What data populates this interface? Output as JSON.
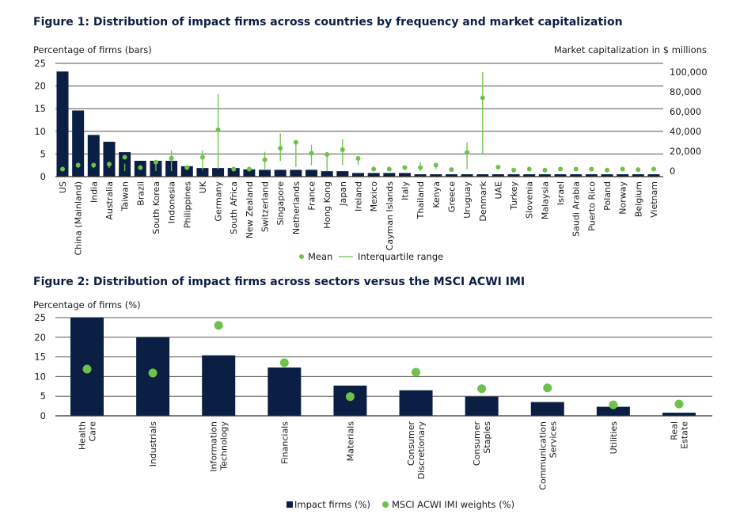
{
  "chart_data": [
    {
      "type": "bar",
      "title": "Figure 1: Distribution of impact firms across countries by frequency and market capitalization",
      "ylabel": "Percentage of firms (bars)",
      "y2label": "Market capitalization in $ millions",
      "ylim": [
        0,
        25
      ],
      "yticks": [
        0,
        5,
        10,
        15,
        20,
        25
      ],
      "y2lim": [
        0,
        100000
      ],
      "y2ticks": [
        "0",
        "20,000",
        "40,000",
        "60,000",
        "80,000",
        "100,000"
      ],
      "grid": true,
      "legend": {
        "placement": "bottom",
        "mean": "Mean",
        "iqr": "Interquartile range"
      },
      "colors": {
        "bar": "#0b1f44",
        "mean": "#6cc24a"
      },
      "categories": [
        "US",
        "China (Mainland)",
        "India",
        "Australia",
        "Taiwan",
        "Brazil",
        "South Korea",
        "Indonesia",
        "Philippines",
        "UK",
        "Germany",
        "South Africa",
        "New Zealand",
        "Switzerland",
        "Singapore",
        "Netherlands",
        "France",
        "Hong Kong",
        "Japan",
        "Ireland",
        "Mexico",
        "Cayman Islands",
        "Italy",
        "Thailand",
        "Kenya",
        "Greece",
        "Uruguay",
        "Denmark",
        "UAE",
        "Turkey",
        "Slovenia",
        "Malaysia",
        "Israel",
        "Saudi Arabia",
        "Puerto Rico",
        "Poland",
        "Norway",
        "Belgium",
        "Vietnam"
      ],
      "bars": [
        23.2,
        14.6,
        9.2,
        7.7,
        5.4,
        3.5,
        3.5,
        3.5,
        2.3,
        1.9,
        1.9,
        1.9,
        1.6,
        1.5,
        1.5,
        1.5,
        1.5,
        1.2,
        1.2,
        0.8,
        0.8,
        0.8,
        0.8,
        0.5,
        0.5,
        0.5,
        0.4,
        0.4,
        0.4,
        0.4,
        0.4,
        0.4,
        0.4,
        0.4,
        0.4,
        0.4,
        0.4,
        0.4,
        0.4
      ],
      "mean": [
        2000,
        6000,
        6000,
        7000,
        14000,
        3500,
        9000,
        13000,
        3500,
        14000,
        41600,
        2000,
        2000,
        11500,
        23000,
        29000,
        18000,
        16800,
        21600,
        12800,
        2000,
        2000,
        3500,
        3500,
        6000,
        1500,
        18700,
        74000,
        4000,
        1000,
        2000,
        1000,
        2000,
        2000,
        2000,
        1000,
        2000,
        1500,
        2000
      ],
      "iqr_low": [
        500,
        3000,
        3000,
        3000,
        0,
        3500,
        0,
        0,
        3500,
        1000,
        2000,
        2000,
        2000,
        2000,
        10000,
        4000,
        6000,
        0,
        6000,
        6000,
        2000,
        2000,
        3500,
        0,
        2000,
        1500,
        2000,
        16800,
        4000,
        1000,
        2000,
        1000,
        2000,
        2000,
        2000,
        1000,
        2000,
        1500,
        2000
      ],
      "iqr_high": [
        3000,
        8000,
        8000,
        9000,
        7500,
        3500,
        10000,
        21000,
        5000,
        21000,
        78000,
        2000,
        2000,
        19500,
        38000,
        29000,
        26700,
        16800,
        32000,
        13000,
        2000,
        2000,
        3500,
        9000,
        7000,
        1500,
        29000,
        100000,
        4000,
        1000,
        2000,
        1000,
        2000,
        2000,
        2000,
        1000,
        2000,
        1500,
        2000
      ]
    },
    {
      "type": "bar",
      "title": "Figure 2: Distribution of impact firms across sectors versus the MSCI ACWI IMI",
      "ylabel": "Percentage of firms (%)",
      "ylim": [
        0,
        25
      ],
      "yticks": [
        0,
        5,
        10,
        15,
        20,
        25
      ],
      "grid": true,
      "legend": {
        "placement": "bottom"
      },
      "categories": [
        "Health Care",
        "Industrials",
        "Information Technology",
        "Financials",
        "Materials",
        "Consumer Discretionary",
        "Consumer Staples",
        "Communication Services",
        "Utilities",
        "Real Estate"
      ],
      "series": [
        {
          "name": "Impact firms (%)",
          "color": "#0b1f44",
          "values": [
            25.0,
            20.0,
            15.4,
            12.3,
            7.7,
            6.5,
            4.9,
            3.5,
            2.3,
            0.8
          ]
        },
        {
          "name": "MSCI ACWI IMI weights (%)",
          "color": "#6cc24a",
          "values": [
            11.9,
            10.9,
            23.0,
            13.5,
            4.9,
            11.1,
            6.9,
            7.1,
            2.8,
            3.0
          ]
        }
      ]
    }
  ]
}
